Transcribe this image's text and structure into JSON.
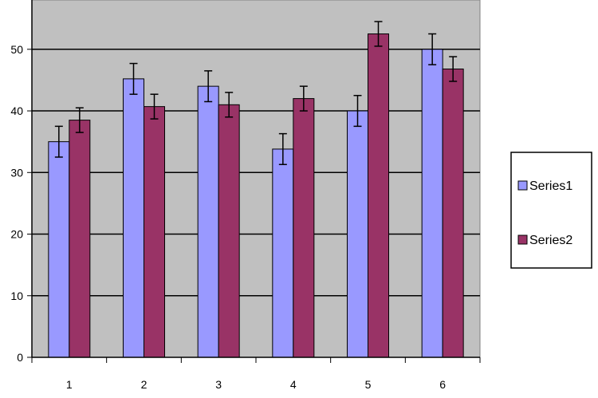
{
  "chart_data": {
    "type": "bar",
    "categories": [
      "1",
      "2",
      "3",
      "4",
      "5",
      "6"
    ],
    "series": [
      {
        "name": "Series1",
        "color": "#9999ff",
        "values": [
          35,
          45.2,
          44,
          33.8,
          40,
          50
        ],
        "error": [
          2.5,
          2.5,
          2.5,
          2.5,
          2.5,
          2.5
        ]
      },
      {
        "name": "Series2",
        "color": "#993366",
        "values": [
          38.5,
          40.7,
          41,
          42,
          52.5,
          46.8
        ],
        "error": [
          2,
          2,
          2,
          2,
          2,
          2
        ]
      }
    ],
    "ylim": [
      0,
      58
    ],
    "yticks": [
      0,
      10,
      20,
      30,
      40,
      50
    ],
    "grid": true,
    "plot_background": "#c0c0c0",
    "legend_position": "right"
  }
}
